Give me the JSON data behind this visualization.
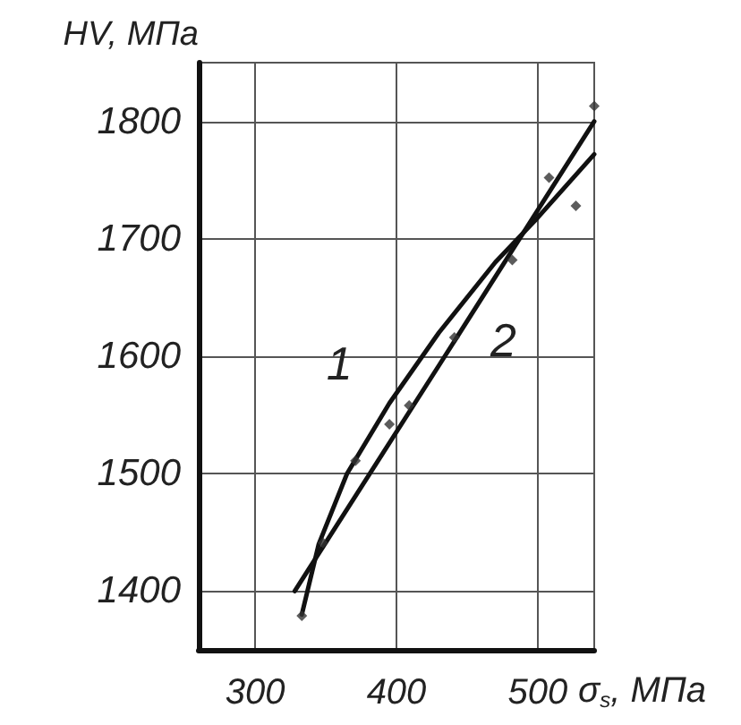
{
  "chart_data": {
    "type": "line",
    "xlabel": "σ$_{s}$, МПа",
    "ylabel": "HV, МПа",
    "xlim": [
      260,
      540
    ],
    "xticks": [
      300,
      400,
      500
    ],
    "ylim": [
      1350,
      1850
    ],
    "yticks": [
      1400,
      1500,
      1600,
      1700,
      1800
    ],
    "grid": true,
    "marker": "none",
    "line_style": "solid",
    "series": [
      {
        "name": "1",
        "color": "#111111",
        "x": [
          333,
          345,
          365,
          395,
          430,
          470,
          500,
          540
        ],
        "values": [
          1380,
          1440,
          1500,
          1560,
          1620,
          1680,
          1718,
          1772
        ]
      },
      {
        "name": "2",
        "color": "#111111",
        "x": [
          328,
          430,
          540
        ],
        "values": [
          1400,
          1592,
          1800
        ]
      },
      {
        "type": "scatter",
        "color": "#333333",
        "marker": "diamond",
        "x": [
          333,
          348,
          371,
          395,
          409,
          441,
          482,
          508,
          527,
          540
        ],
        "values": [
          1379,
          1441,
          1511,
          1542,
          1558,
          1616,
          1682,
          1752,
          1728,
          1813
        ]
      }
    ]
  }
}
